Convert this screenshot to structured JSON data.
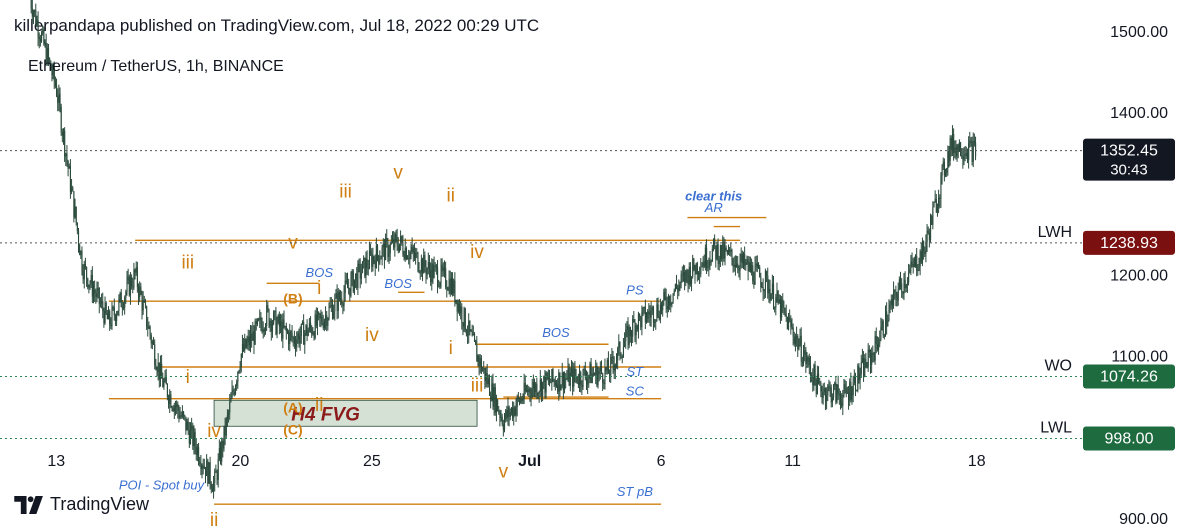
{
  "header": {
    "published": "killerpandapa published on TradingView.com, Jul 18, 2022 00:29 UTC",
    "symbol": "Ethereum / TetherUS, 1h, BINANCE"
  },
  "footer": {
    "brand": "TradingView",
    "logo_icon": "tradingview-logo-icon"
  },
  "colors": {
    "candle": "#2a4a3c",
    "orange": "#cf7f12",
    "blue": "#3a6fd1",
    "darkred": "#8b1a1a",
    "fvg_fill": "#cfdccf",
    "price_black": "#131722",
    "price_red": "#7a1010",
    "price_green": "#1e6b40",
    "grid_dotted": "#555555",
    "green_dotted": "#2d8a57"
  },
  "chart_data": {
    "type": "candlestick",
    "title": "Ethereum / TetherUS, 1h, BINANCE",
    "y_ticks": [
      "1500.00",
      "1400.00",
      "1200.00",
      "1100.00",
      "900.00"
    ],
    "ylim": [
      880,
      1550
    ],
    "x_ticks": [
      "13",
      "20",
      "25",
      "Jul",
      "6",
      "11",
      "18"
    ],
    "x_range_days": [
      "2022-06-12",
      "2022-07-19"
    ],
    "close_path": [
      {
        "date": "2022-06-12",
        "price": 1540
      },
      {
        "date": "2022-06-13",
        "price": 1430
      },
      {
        "date": "2022-06-14",
        "price": 1210
      },
      {
        "date": "2022-06-15",
        "price": 1140
      },
      {
        "date": "2022-06-16",
        "price": 1200
      },
      {
        "date": "2022-06-17",
        "price": 1070
      },
      {
        "date": "2022-06-18",
        "price": 1010
      },
      {
        "date": "2022-06-19",
        "price": 940
      },
      {
        "date": "2022-06-20",
        "price": 1100
      },
      {
        "date": "2022-06-21",
        "price": 1150
      },
      {
        "date": "2022-06-22",
        "price": 1120
      },
      {
        "date": "2022-06-23",
        "price": 1140
      },
      {
        "date": "2022-06-24",
        "price": 1180
      },
      {
        "date": "2022-06-25",
        "price": 1220
      },
      {
        "date": "2022-06-26",
        "price": 1240
      },
      {
        "date": "2022-06-27",
        "price": 1210
      },
      {
        "date": "2022-06-28",
        "price": 1190
      },
      {
        "date": "2022-06-29",
        "price": 1100
      },
      {
        "date": "2022-06-30",
        "price": 1020
      },
      {
        "date": "2022-07-01",
        "price": 1060
      },
      {
        "date": "2022-07-02",
        "price": 1070
      },
      {
        "date": "2022-07-03",
        "price": 1075
      },
      {
        "date": "2022-07-04",
        "price": 1080
      },
      {
        "date": "2022-07-05",
        "price": 1140
      },
      {
        "date": "2022-07-06",
        "price": 1160
      },
      {
        "date": "2022-07-07",
        "price": 1200
      },
      {
        "date": "2022-07-08",
        "price": 1230
      },
      {
        "date": "2022-07-09",
        "price": 1215
      },
      {
        "date": "2022-07-10",
        "price": 1190
      },
      {
        "date": "2022-07-11",
        "price": 1130
      },
      {
        "date": "2022-07-12",
        "price": 1060
      },
      {
        "date": "2022-07-13",
        "price": 1050
      },
      {
        "date": "2022-07-14",
        "price": 1100
      },
      {
        "date": "2022-07-15",
        "price": 1180
      },
      {
        "date": "2022-07-16",
        "price": 1230
      },
      {
        "date": "2022-07-17",
        "price": 1360
      },
      {
        "date": "2022-07-18",
        "price": 1352
      }
    ],
    "price_labels": [
      {
        "value": "1352.45",
        "sub": "30:43",
        "price": 1352.45,
        "color": "#131722",
        "line": "black"
      },
      {
        "value": "1238.93",
        "price": 1238.93,
        "color": "#7a1010",
        "line": "black",
        "tag": "LWH"
      },
      {
        "value": "1074.26",
        "price": 1074.26,
        "color": "#1e6b40",
        "line": "green",
        "tag": "WO"
      },
      {
        "value": "998.00",
        "price": 998.0,
        "color": "#1e6b40",
        "line": "green",
        "tag": "LWL"
      }
    ],
    "levels": [
      {
        "from": "2022-06-16",
        "to": "2022-07-09",
        "price": 1242
      },
      {
        "from": "2022-06-15",
        "to": "2022-07-06",
        "price": 1167
      },
      {
        "from": "2022-06-17",
        "to": "2022-07-06",
        "price": 1086
      },
      {
        "from": "2022-06-15",
        "to": "2022-07-06",
        "price": 1047
      },
      {
        "from": "2022-06-19",
        "to": "2022-07-06",
        "price": 917
      },
      {
        "from": "2022-06-21",
        "to": "2022-06-23",
        "price": 1189
      },
      {
        "from": "2022-06-26",
        "to": "2022-06-27",
        "price": 1178
      },
      {
        "from": "2022-06-29",
        "to": "2022-07-04",
        "price": 1114
      },
      {
        "from": "2022-06-30",
        "to": "2022-07-04",
        "price": 1049
      },
      {
        "from": "2022-07-08",
        "to": "2022-07-09",
        "price": 1259
      },
      {
        "from": "2022-07-07",
        "to": "2022-07-10",
        "price": 1270
      }
    ],
    "fvg_zone": {
      "from": "2022-06-19",
      "to": "2022-06-29",
      "price_high": 1045,
      "price_low": 1013,
      "label": "H4 FVG"
    },
    "annotations": [
      {
        "text": "v",
        "date": "2022-06-26",
        "price": 1318,
        "color": "orange",
        "size": 19
      },
      {
        "text": "iii",
        "date": "2022-06-24",
        "price": 1295,
        "color": "orange",
        "size": 19
      },
      {
        "text": "ii",
        "date": "2022-06-28",
        "price": 1290,
        "color": "orange",
        "size": 19
      },
      {
        "text": "v",
        "date": "2022-06-22",
        "price": 1232,
        "color": "orange",
        "size": 19
      },
      {
        "text": "iv",
        "date": "2022-06-29",
        "price": 1220,
        "color": "orange",
        "size": 19
      },
      {
        "text": "iii",
        "date": "2022-06-18",
        "price": 1207,
        "color": "orange",
        "size": 19
      },
      {
        "text": "(B)",
        "date": "2022-06-22",
        "price": 1164,
        "color": "orange",
        "size": 14,
        "bold": true
      },
      {
        "text": "i",
        "date": "2022-06-23",
        "price": 1176,
        "color": "orange",
        "size": 19
      },
      {
        "text": "iv",
        "date": "2022-06-25",
        "price": 1118,
        "color": "orange",
        "size": 19
      },
      {
        "text": "i",
        "date": "2022-06-28",
        "price": 1102,
        "color": "orange",
        "size": 19
      },
      {
        "text": "i",
        "date": "2022-06-18",
        "price": 1066,
        "color": "orange",
        "size": 19
      },
      {
        "text": "iii",
        "date": "2022-06-29",
        "price": 1056,
        "color": "orange",
        "size": 19
      },
      {
        "text": "(A)",
        "date": "2022-06-22",
        "price": 1030,
        "color": "orange",
        "size": 14,
        "bold": true
      },
      {
        "text": "ii",
        "date": "2022-06-23",
        "price": 1032,
        "color": "orange",
        "size": 19
      },
      {
        "text": "iv",
        "date": "2022-06-19",
        "price": 1000,
        "color": "orange",
        "size": 19
      },
      {
        "text": "(C)",
        "date": "2022-06-22",
        "price": 1003,
        "color": "orange",
        "size": 14,
        "bold": true
      },
      {
        "text": "v",
        "date": "2022-06-30",
        "price": 950,
        "color": "orange",
        "size": 19
      },
      {
        "text": "ii",
        "date": "2022-06-19",
        "price": 890,
        "color": "orange",
        "size": 19
      },
      {
        "text": "BOS",
        "date": "2022-06-23",
        "price": 1197,
        "color": "blue",
        "size": 13
      },
      {
        "text": "BOS",
        "date": "2022-06-26",
        "price": 1183,
        "color": "blue",
        "size": 13
      },
      {
        "text": "BOS",
        "date": "2022-07-02",
        "price": 1123,
        "color": "blue",
        "size": 13
      },
      {
        "text": "PS",
        "date": "2022-07-05",
        "price": 1175,
        "color": "blue",
        "size": 13
      },
      {
        "text": "ST",
        "date": "2022-07-05",
        "price": 1075,
        "color": "blue",
        "size": 13
      },
      {
        "text": "SC",
        "date": "2022-07-05",
        "price": 1051,
        "color": "blue",
        "size": 13
      },
      {
        "text": "AR",
        "date": "2022-07-08",
        "price": 1277,
        "color": "blue",
        "size": 13
      },
      {
        "text": "clear this",
        "date": "2022-07-08",
        "price": 1291,
        "color": "blue",
        "size": 13,
        "bold": true
      },
      {
        "text": "ST pB",
        "date": "2022-07-05",
        "price": 927,
        "color": "blue",
        "size": 13
      },
      {
        "text": "POI - Spot buy",
        "date": "2022-06-17",
        "price": 935,
        "color": "blue",
        "size": 13
      }
    ]
  }
}
